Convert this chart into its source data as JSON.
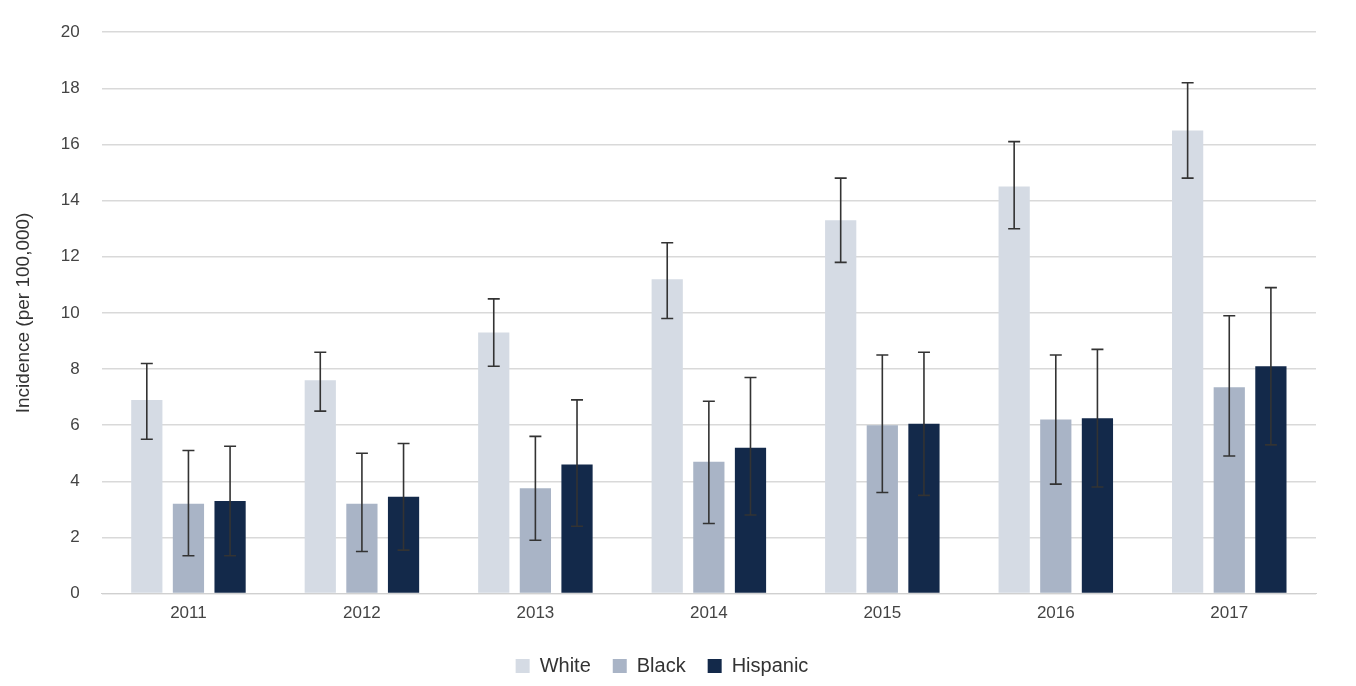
{
  "chart_data": {
    "type": "bar",
    "ylabel": "Incidence (per 100,000)",
    "categories": [
      "2011",
      "2012",
      "2013",
      "2014",
      "2015",
      "2016",
      "2017"
    ],
    "series": [
      {
        "name": "White",
        "color": "#d5dbe4",
        "values": [
          6.9,
          7.6,
          9.3,
          11.2,
          13.3,
          14.5,
          16.5
        ],
        "errors": [
          [
            5.5,
            8.2
          ],
          [
            6.5,
            8.6
          ],
          [
            8.1,
            10.5
          ],
          [
            9.8,
            12.5
          ],
          [
            11.8,
            14.8
          ],
          [
            13.0,
            16.1
          ],
          [
            14.8,
            18.2
          ]
        ]
      },
      {
        "name": "Black",
        "color": "#a9b4c6",
        "values": [
          3.2,
          3.2,
          3.75,
          4.7,
          6.0,
          6.2,
          7.35
        ],
        "errors": [
          [
            1.35,
            5.1
          ],
          [
            1.5,
            5.0
          ],
          [
            1.9,
            5.6
          ],
          [
            2.5,
            6.85
          ],
          [
            3.6,
            8.5
          ],
          [
            3.9,
            8.5
          ],
          [
            4.9,
            9.9
          ]
        ]
      },
      {
        "name": "Hispanic",
        "color": "#13294a",
        "values": [
          3.3,
          3.45,
          4.6,
          5.2,
          6.05,
          6.25,
          8.1
        ],
        "errors": [
          [
            1.35,
            5.25
          ],
          [
            1.55,
            5.35
          ],
          [
            2.4,
            6.9
          ],
          [
            2.8,
            7.7
          ],
          [
            3.5,
            8.6
          ],
          [
            3.8,
            8.7
          ],
          [
            5.3,
            10.9
          ]
        ]
      }
    ],
    "ylim": [
      0,
      20
    ],
    "yticks": [
      0,
      2,
      4,
      6,
      8,
      10,
      12,
      14,
      16,
      18,
      20
    ],
    "grid": "y",
    "legend": "bottom"
  }
}
